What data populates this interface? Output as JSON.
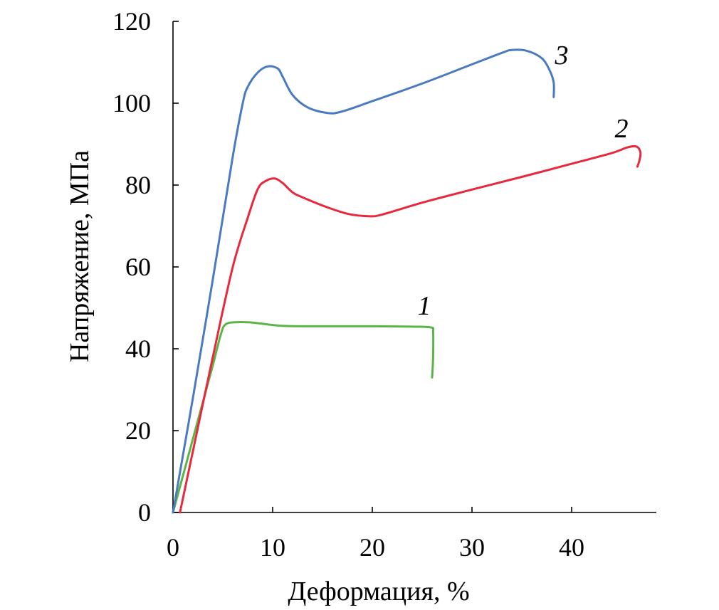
{
  "chart_data": {
    "type": "line",
    "title": "",
    "xlabel": "Деформация, %",
    "ylabel": "Напряжение, МПа",
    "xlim": [
      0,
      48.5
    ],
    "ylim": [
      0,
      120
    ],
    "x_ticks": [
      0,
      10,
      20,
      30,
      40
    ],
    "y_ticks": [
      0,
      20,
      40,
      60,
      80,
      100,
      120
    ],
    "x_tick_labels": [
      "0",
      "10",
      "20",
      "30",
      "40"
    ],
    "y_tick_labels": [
      "0",
      "20",
      "40",
      "60",
      "80",
      "100",
      "120"
    ],
    "grid": false,
    "legend": "none",
    "series": [
      {
        "label": "1",
        "color": "#5ab446",
        "points": [
          [
            0,
            0
          ],
          [
            1,
            9
          ],
          [
            2,
            18
          ],
          [
            3,
            27
          ],
          [
            4,
            36
          ],
          [
            4.8,
            43.5
          ],
          [
            5.3,
            46
          ],
          [
            6.5,
            46.5
          ],
          [
            8,
            46.4
          ],
          [
            11,
            45.6
          ],
          [
            15,
            45.5
          ],
          [
            20,
            45.5
          ],
          [
            24,
            45.4
          ],
          [
            25.9,
            45.2
          ],
          [
            26.1,
            44
          ],
          [
            26.1,
            38
          ],
          [
            26,
            33
          ]
        ]
      },
      {
        "label": "2",
        "color": "#e8283c",
        "points": [
          [
            0.7,
            0
          ],
          [
            2,
            15
          ],
          [
            4,
            38
          ],
          [
            6,
            60
          ],
          [
            7.5,
            72
          ],
          [
            8.5,
            79
          ],
          [
            9.3,
            81
          ],
          [
            10.2,
            81.6
          ],
          [
            11,
            80.5
          ],
          [
            12,
            78.2
          ],
          [
            13,
            77
          ],
          [
            15,
            75
          ],
          [
            17.5,
            73
          ],
          [
            19.6,
            72.4
          ],
          [
            21,
            72.8
          ],
          [
            25,
            75.7
          ],
          [
            30,
            78.9
          ],
          [
            35,
            82
          ],
          [
            40,
            85.2
          ],
          [
            44,
            87.8
          ],
          [
            45.6,
            89.2
          ],
          [
            46.5,
            89.4
          ],
          [
            46.9,
            88
          ],
          [
            46.8,
            86
          ],
          [
            46.6,
            84.5
          ]
        ]
      },
      {
        "label": "3",
        "color": "#4a7abf",
        "points": [
          [
            0,
            0
          ],
          [
            1,
            14
          ],
          [
            2,
            28
          ],
          [
            4,
            57
          ],
          [
            6,
            87
          ],
          [
            7,
            100
          ],
          [
            7.5,
            104
          ],
          [
            8.5,
            107.5
          ],
          [
            9.5,
            109
          ],
          [
            10.5,
            108.5
          ],
          [
            11,
            106.5
          ],
          [
            12,
            102
          ],
          [
            13.5,
            99
          ],
          [
            15.5,
            97.6
          ],
          [
            17,
            98
          ],
          [
            20,
            100.5
          ],
          [
            25,
            104.8
          ],
          [
            30,
            109.5
          ],
          [
            33,
            112.3
          ],
          [
            34,
            113
          ],
          [
            35.5,
            112.8
          ],
          [
            37,
            111
          ],
          [
            37.8,
            108
          ],
          [
            38.2,
            105
          ],
          [
            38.2,
            101.5
          ]
        ]
      }
    ]
  }
}
